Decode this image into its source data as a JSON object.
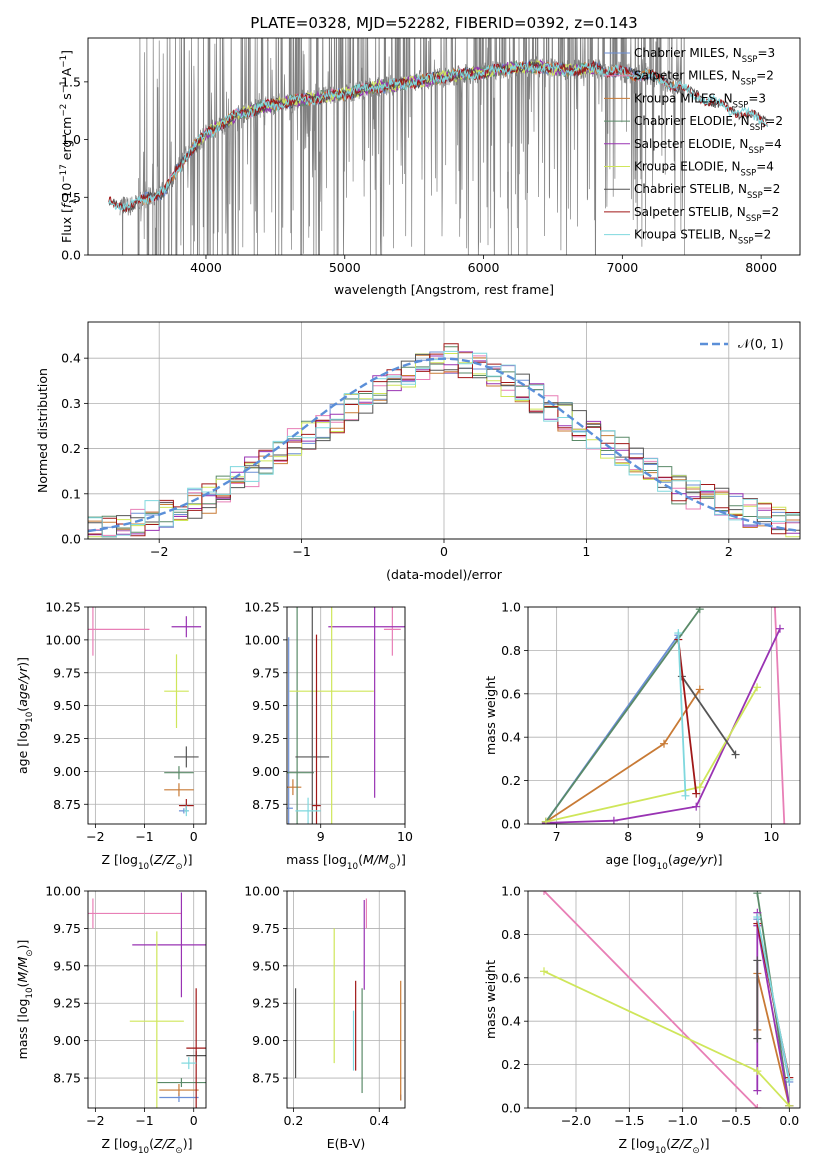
{
  "colors": {
    "chabrier_miles": "#6b8fd6",
    "salpeter_miles": "#e87fb6",
    "kroupa_miles": "#c87a35",
    "chabrier_elodie": "#5a8a68",
    "salpeter_elodie": "#9933b3",
    "kroupa_elodie": "#cfe65a",
    "chabrier_stelib": "#555555",
    "salpeter_stelib": "#a01818",
    "kroupa_stelib": "#7fd8de",
    "data_spectrum": "#808080",
    "normal_curve": "#5b8fd8"
  },
  "chart_data": [
    {
      "id": "spectrum",
      "type": "line",
      "title": "PLATE=0328, MJD=52282, FIBERID=0392, z=0.143",
      "xlabel": "wavelength [Angstrom, rest frame]",
      "ylabel": "Flux [f_λ 10^-17 erg cm^-2 s^-1 A^-1]",
      "xlim": [
        3150,
        8280
      ],
      "ylim": [
        0,
        1.88
      ],
      "xticks": [
        4000,
        5000,
        6000,
        7000,
        8000
      ],
      "yticks": [
        0.0,
        0.5,
        1.0,
        1.5
      ],
      "legend_position": "top-right",
      "continuum": {
        "x": [
          3300,
          3450,
          3550,
          3700,
          3850,
          4000,
          4200,
          4400,
          4600,
          4800,
          5000,
          5200,
          5400,
          5600,
          5800,
          6000,
          6200,
          6400,
          6600,
          6800,
          7000,
          7200,
          7400,
          7600,
          7800,
          8000,
          8050
        ],
        "y": [
          0.45,
          0.42,
          0.48,
          0.55,
          0.85,
          1.05,
          1.2,
          1.28,
          1.33,
          1.36,
          1.4,
          1.45,
          1.48,
          1.52,
          1.56,
          1.58,
          1.62,
          1.63,
          1.6,
          1.62,
          1.58,
          1.55,
          1.46,
          1.35,
          1.25,
          1.18,
          1.15
        ]
      },
      "data_spectrum_range": [
        3380,
        7450
      ],
      "series": [
        {
          "name": "Chabrier MILES, N_SSP=3",
          "color_key": "chabrier_miles",
          "x_range": [
            3540,
            7420
          ]
        },
        {
          "name": "Salpeter MILES, N_SSP=2",
          "color_key": "salpeter_miles",
          "x_range": [
            3540,
            7420
          ]
        },
        {
          "name": "Kroupa MILES, N_SSP=3",
          "color_key": "kroupa_miles",
          "x_range": [
            3540,
            7420
          ]
        },
        {
          "name": "Chabrier ELODIE, N_SSP=2",
          "color_key": "chabrier_elodie",
          "x_range": [
            3900,
            6800
          ]
        },
        {
          "name": "Salpeter ELODIE, N_SSP=4",
          "color_key": "salpeter_elodie",
          "x_range": [
            3900,
            6800
          ]
        },
        {
          "name": "Kroupa ELODIE, N_SSP=4",
          "color_key": "kroupa_elodie",
          "x_range": [
            3900,
            6800
          ]
        },
        {
          "name": "Chabrier STELIB, N_SSP=2",
          "color_key": "chabrier_stelib",
          "x_range": [
            3300,
            8050
          ]
        },
        {
          "name": "Salpeter STELIB, N_SSP=2",
          "color_key": "salpeter_stelib",
          "x_range": [
            3300,
            8050
          ]
        },
        {
          "name": "Kroupa STELIB, N_SSP=2",
          "color_key": "kroupa_stelib",
          "x_range": [
            3300,
            8050
          ]
        }
      ]
    },
    {
      "id": "residuals",
      "type": "line",
      "title": "",
      "xlabel": "(data-model)/error",
      "ylabel": "Normed distribution",
      "xlim": [
        -2.5,
        2.5
      ],
      "ylim": [
        0,
        0.48
      ],
      "xticks": [
        -2,
        -1,
        0,
        1,
        2
      ],
      "yticks": [
        0.0,
        0.1,
        0.2,
        0.3,
        0.4
      ],
      "grid": true,
      "legend_position": "top-right",
      "legend_label": "𝒩(0, 1)",
      "bin_width": 0.1,
      "bins_start": -2.5,
      "hist_base": [
        0.02,
        0.02,
        0.03,
        0.04,
        0.05,
        0.06,
        0.07,
        0.08,
        0.09,
        0.11,
        0.13,
        0.15,
        0.17,
        0.19,
        0.21,
        0.23,
        0.25,
        0.27,
        0.29,
        0.31,
        0.33,
        0.35,
        0.36,
        0.38,
        0.39,
        0.4,
        0.39,
        0.38,
        0.37,
        0.35,
        0.33,
        0.31,
        0.29,
        0.27,
        0.25,
        0.23,
        0.21,
        0.19,
        0.17,
        0.15,
        0.13,
        0.11,
        0.1,
        0.09,
        0.08,
        0.07,
        0.06,
        0.05,
        0.04,
        0.03
      ],
      "series_noise_scale": 0.035
    },
    {
      "id": "age_vs_Z",
      "type": "scatter",
      "title": "",
      "xlabel": "Z [log10(Z/Z☉)]",
      "ylabel": "age  [log10(age/yr)]",
      "xlim": [
        -2.15,
        0.25
      ],
      "ylim": [
        8.6,
        10.25
      ],
      "xticks": [
        -2,
        -1,
        0
      ],
      "yticks": [
        8.75,
        9.0,
        9.25,
        9.5,
        9.75,
        10.0,
        10.25
      ],
      "grid": true,
      "points": [
        {
          "key": "chabrier_miles",
          "x": -0.2,
          "xerr": 0.1,
          "y": 8.7,
          "yerr": 0.02
        },
        {
          "key": "salpeter_miles",
          "x": -2.05,
          "xerr": 1.15,
          "y": 10.08,
          "yerr": 0.2
        },
        {
          "key": "kroupa_miles",
          "x": -0.3,
          "xerr": 0.3,
          "y": 8.86,
          "yerr": 0.05
        },
        {
          "key": "chabrier_elodie",
          "x": -0.3,
          "xerr": 0.3,
          "y": 8.99,
          "yerr": 0.05
        },
        {
          "key": "salpeter_elodie",
          "x": -0.15,
          "xerr": 0.3,
          "y": 10.1,
          "yerr": 0.08
        },
        {
          "key": "kroupa_elodie",
          "x": -0.35,
          "xerr": 0.25,
          "y": 9.61,
          "yerr": 0.28
        },
        {
          "key": "chabrier_stelib",
          "x": -0.15,
          "xerr": 0.25,
          "y": 9.11,
          "yerr": 0.08
        },
        {
          "key": "salpeter_stelib",
          "x": -0.15,
          "xerr": 0.15,
          "y": 8.74,
          "yerr": 0.05
        },
        {
          "key": "kroupa_stelib",
          "x": -0.15,
          "xerr": 0.05,
          "y": 8.7,
          "yerr": 0.04
        }
      ]
    },
    {
      "id": "age_vs_mass",
      "type": "scatter",
      "title": "",
      "xlabel": "mass [log10(M/M☉)]",
      "ylabel": "",
      "xlim": [
        8.6,
        10.0
      ],
      "ylim": [
        8.6,
        10.25
      ],
      "xticks": [
        9,
        10
      ],
      "yticks": [
        8.75,
        9.0,
        9.25,
        9.5,
        9.75,
        10.0,
        10.25
      ],
      "grid": true,
      "points": [
        {
          "key": "chabrier_miles",
          "x": 8.62,
          "xerr": 0.05,
          "y": 8.72,
          "yerr": 1.3
        },
        {
          "key": "salpeter_miles",
          "x": 9.85,
          "xerr": 0.1,
          "y": 10.08,
          "yerr": 0.2
        },
        {
          "key": "kroupa_miles",
          "x": 8.67,
          "xerr": 0.1,
          "y": 8.88,
          "yerr": 0.06
        },
        {
          "key": "chabrier_elodie",
          "x": 8.72,
          "xerr": 0.2,
          "y": 8.99,
          "yerr": 1.3
        },
        {
          "key": "salpeter_elodie",
          "x": 9.64,
          "xerr": 0.55,
          "y": 10.1,
          "yerr": 1.3
        },
        {
          "key": "kroupa_elodie",
          "x": 9.13,
          "xerr": 0.5,
          "y": 9.61,
          "yerr": 1.3
        },
        {
          "key": "chabrier_stelib",
          "x": 8.9,
          "xerr": 0.2,
          "y": 9.11,
          "yerr": 1.3
        },
        {
          "key": "salpeter_stelib",
          "x": 8.95,
          "xerr": 0.05,
          "y": 8.74,
          "yerr": 1.3
        },
        {
          "key": "kroupa_stelib",
          "x": 8.85,
          "xerr": 0.15,
          "y": 8.7,
          "yerr": 0.1
        }
      ]
    },
    {
      "id": "weight_vs_age",
      "type": "line",
      "title": "",
      "xlabel": "age  [log10(age/yr)]",
      "ylabel": "mass weight",
      "xlim": [
        6.6,
        10.4
      ],
      "ylim": [
        0,
        1
      ],
      "xticks": [
        7,
        8,
        9,
        10
      ],
      "yticks": [
        0.0,
        0.2,
        0.4,
        0.6,
        0.8,
        1.0
      ],
      "grid": true,
      "series": [
        {
          "key": "chabrier_miles",
          "x": [
            6.85,
            8.7
          ],
          "y": [
            0.01,
            0.87
          ]
        },
        {
          "key": "salpeter_miles",
          "x": [
            10.05,
            10.18
          ],
          "y": [
            1.0,
            0.0
          ]
        },
        {
          "key": "kroupa_miles",
          "x": [
            6.85,
            8.5,
            9.0
          ],
          "y": [
            0.01,
            0.37,
            0.62
          ]
        },
        {
          "key": "chabrier_elodie",
          "x": [
            6.85,
            9.0
          ],
          "y": [
            0.01,
            0.99
          ]
        },
        {
          "key": "salpeter_elodie",
          "x": [
            6.85,
            7.8,
            8.95,
            10.12
          ],
          "y": [
            0.005,
            0.015,
            0.08,
            0.9
          ]
        },
        {
          "key": "kroupa_elodie",
          "x": [
            6.85,
            9.0,
            9.8
          ],
          "y": [
            0.01,
            0.17,
            0.63
          ]
        },
        {
          "key": "chabrier_stelib",
          "x": [
            8.75,
            9.5
          ],
          "y": [
            0.68,
            0.32
          ]
        },
        {
          "key": "salpeter_stelib",
          "x": [
            8.7,
            8.95
          ],
          "y": [
            0.85,
            0.14
          ]
        },
        {
          "key": "kroupa_stelib",
          "x": [
            8.7,
            8.8
          ],
          "y": [
            0.88,
            0.13
          ]
        }
      ]
    },
    {
      "id": "mass_vs_Z",
      "type": "scatter",
      "title": "",
      "xlabel": "Z [log10(Z/Z☉)]",
      "ylabel": "mass [log10(M/M☉)]",
      "xlim": [
        -2.15,
        0.25
      ],
      "ylim": [
        8.55,
        10.0
      ],
      "xticks": [
        -2,
        -1,
        0
      ],
      "yticks": [
        8.75,
        9.0,
        9.25,
        9.5,
        9.75,
        10.0
      ],
      "grid": true,
      "points": [
        {
          "key": "chabrier_miles",
          "x": -0.3,
          "xerr": 0.4,
          "y": 8.62,
          "yerr": 0.03
        },
        {
          "key": "salpeter_miles",
          "x": -2.05,
          "xerr": 1.8,
          "y": 9.85,
          "yerr": 0.1
        },
        {
          "key": "kroupa_miles",
          "x": -0.3,
          "xerr": 0.4,
          "y": 8.67,
          "yerr": 0.04
        },
        {
          "key": "chabrier_elodie",
          "x": -0.25,
          "xerr": 0.5,
          "y": 8.72,
          "yerr": 0.03
        },
        {
          "key": "salpeter_elodie",
          "x": -0.25,
          "xerr": 1.0,
          "y": 9.64,
          "yerr": 0.35
        },
        {
          "key": "kroupa_elodie",
          "x": -0.75,
          "xerr": 0.55,
          "y": 9.13,
          "yerr": 0.6
        },
        {
          "key": "chabrier_stelib",
          "x": 0.05,
          "xerr": 0.2,
          "y": 8.9,
          "yerr": 0.03
        },
        {
          "key": "salpeter_stelib",
          "x": 0.05,
          "xerr": 0.2,
          "y": 8.95,
          "yerr": 0.4
        },
        {
          "key": "kroupa_stelib",
          "x": -0.1,
          "xerr": 0.15,
          "y": 8.85,
          "yerr": 0.04
        }
      ]
    },
    {
      "id": "mass_vs_ebv",
      "type": "scatter",
      "title": "",
      "xlabel": "E(B-V)",
      "ylabel": "",
      "xlim": [
        0.185,
        0.46
      ],
      "ylim": [
        8.55,
        10.0
      ],
      "xticks": [
        0.2,
        0.4
      ],
      "yticks": [
        8.75,
        9.0,
        9.25,
        9.5,
        9.75,
        10.0
      ],
      "grid": true,
      "points": [
        {
          "key": "chabrier_miles",
          "x": 0.45,
          "y": 8.62,
          "yerr": 0.02
        },
        {
          "key": "salpeter_miles",
          "x": 0.37,
          "y": 9.85,
          "yerr": 0.1
        },
        {
          "key": "kroupa_miles",
          "x": 0.45,
          "y": 9.0,
          "yerr": 0.4
        },
        {
          "key": "chabrier_elodie",
          "x": 0.36,
          "y": 9.0,
          "yerr": 0.35
        },
        {
          "key": "salpeter_elodie",
          "x": 0.365,
          "y": 9.64,
          "yerr": 0.3
        },
        {
          "key": "kroupa_elodie",
          "x": 0.295,
          "y": 9.3,
          "yerr": 0.45
        },
        {
          "key": "chabrier_stelib",
          "x": 0.205,
          "y": 9.05,
          "yerr": 0.3
        },
        {
          "key": "salpeter_stelib",
          "x": 0.345,
          "y": 9.1,
          "yerr": 0.3
        },
        {
          "key": "kroupa_stelib",
          "x": 0.34,
          "y": 9.0,
          "yerr": 0.2
        }
      ]
    },
    {
      "id": "weight_vs_Z",
      "type": "line",
      "title": "",
      "xlabel": "Z [log10(Z/Z☉)]",
      "ylabel": "mass weight",
      "xlim": [
        -2.45,
        0.1
      ],
      "ylim": [
        0,
        1
      ],
      "xticks": [
        -2.0,
        -1.5,
        -1.0,
        -0.5,
        0.0
      ],
      "yticks": [
        0.0,
        0.2,
        0.4,
        0.6,
        0.8,
        1.0
      ],
      "grid": true,
      "series": [
        {
          "key": "chabrier_miles",
          "x": [
            -0.3,
            0.0
          ],
          "y": [
            0.87,
            0.12
          ]
        },
        {
          "key": "salpeter_miles",
          "x": [
            -2.3,
            -0.3
          ],
          "y": [
            1.0,
            0.0
          ]
        },
        {
          "key": "kroupa_miles",
          "x": [
            -0.3,
            -0.3,
            0.0
          ],
          "y": [
            0.36,
            0.62,
            0.01
          ]
        },
        {
          "key": "chabrier_elodie",
          "x": [
            -0.3,
            0.0
          ],
          "y": [
            0.99,
            0.01
          ]
        },
        {
          "key": "salpeter_elodie",
          "x": [
            -0.3,
            -0.3,
            -0.3,
            0.0
          ],
          "y": [
            0.08,
            0.9,
            0.84,
            0.01
          ]
        },
        {
          "key": "kroupa_elodie",
          "x": [
            -2.3,
            -0.3,
            0.0
          ],
          "y": [
            0.63,
            0.17,
            0.01
          ]
        },
        {
          "key": "chabrier_stelib",
          "x": [
            -0.3,
            -0.3
          ],
          "y": [
            0.68,
            0.32
          ]
        },
        {
          "key": "salpeter_stelib",
          "x": [
            -0.3,
            0.0
          ],
          "y": [
            0.85,
            0.14
          ]
        },
        {
          "key": "kroupa_stelib",
          "x": [
            -0.3,
            0.0
          ],
          "y": [
            0.88,
            0.13
          ]
        }
      ]
    }
  ]
}
